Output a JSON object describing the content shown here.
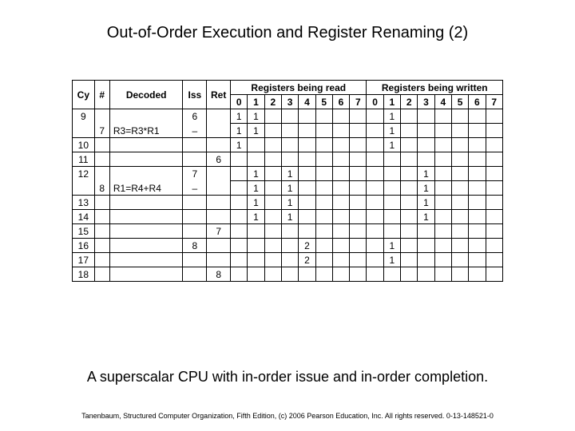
{
  "title": "Out-of-Order Execution and Register Renaming (2)",
  "caption": "A superscalar CPU with in-order issue and in-order completion.",
  "footer": "Tanenbaum, Structured Computer Organization, Fifth Edition, (c) 2006 Pearson Education, Inc. All rights reserved. 0-13-148521-0",
  "table": {
    "group_headers": {
      "read": "Registers being read",
      "write": "Registers being written"
    },
    "col_headers": {
      "cy": "Cy",
      "hash": "#",
      "decoded": "Decoded",
      "iss": "Iss",
      "ret": "Ret"
    },
    "reg_cols": [
      "0",
      "1",
      "2",
      "3",
      "4",
      "5",
      "6",
      "7"
    ],
    "rows": [
      {
        "cy": "9",
        "hash": "",
        "decoded": "",
        "iss": "6",
        "ret": "",
        "r": [
          "1",
          "1",
          "",
          "",
          "",
          "",
          "",
          ""
        ],
        "w": [
          "",
          "1",
          "",
          "",
          "",
          "",
          "",
          ""
        ],
        "split": "bottom"
      },
      {
        "cy": "",
        "hash": "7",
        "decoded": "R3=R3*R1",
        "iss": "–",
        "ret": "",
        "r": [
          "1",
          "1",
          "",
          "",
          "",
          "",
          "",
          ""
        ],
        "w": [
          "",
          "1",
          "",
          "",
          "",
          "",
          "",
          ""
        ],
        "split": "top"
      },
      {
        "cy": "10",
        "hash": "",
        "decoded": "",
        "iss": "",
        "ret": "",
        "r": [
          "1",
          "",
          "",
          "",
          "",
          "",
          "",
          ""
        ],
        "w": [
          "",
          "1",
          "",
          "",
          "",
          "",
          "",
          ""
        ]
      },
      {
        "cy": "11",
        "hash": "",
        "decoded": "",
        "iss": "",
        "ret": "6",
        "r": [
          "",
          "",
          "",
          "",
          "",
          "",
          "",
          ""
        ],
        "w": [
          "",
          "",
          "",
          "",
          "",
          "",
          "",
          ""
        ]
      },
      {
        "cy": "12",
        "hash": "",
        "decoded": "",
        "iss": "7",
        "ret": "",
        "r": [
          "",
          "1",
          "",
          "1",
          "",
          "",
          "",
          ""
        ],
        "w": [
          "",
          "",
          "",
          "1",
          "",
          "",
          "",
          ""
        ],
        "split": "bottom"
      },
      {
        "cy": "",
        "hash": "8",
        "decoded": "R1=R4+R4",
        "iss": "–",
        "ret": "",
        "r": [
          "",
          "1",
          "",
          "1",
          "",
          "",
          "",
          ""
        ],
        "w": [
          "",
          "",
          "",
          "1",
          "",
          "",
          "",
          ""
        ],
        "split": "top"
      },
      {
        "cy": "13",
        "hash": "",
        "decoded": "",
        "iss": "",
        "ret": "",
        "r": [
          "",
          "1",
          "",
          "1",
          "",
          "",
          "",
          ""
        ],
        "w": [
          "",
          "",
          "",
          "1",
          "",
          "",
          "",
          ""
        ]
      },
      {
        "cy": "14",
        "hash": "",
        "decoded": "",
        "iss": "",
        "ret": "",
        "r": [
          "",
          "1",
          "",
          "1",
          "",
          "",
          "",
          ""
        ],
        "w": [
          "",
          "",
          "",
          "1",
          "",
          "",
          "",
          ""
        ]
      },
      {
        "cy": "15",
        "hash": "",
        "decoded": "",
        "iss": "",
        "ret": "7",
        "r": [
          "",
          "",
          "",
          "",
          "",
          "",
          "",
          ""
        ],
        "w": [
          "",
          "",
          "",
          "",
          "",
          "",
          "",
          ""
        ]
      },
      {
        "cy": "16",
        "hash": "",
        "decoded": "",
        "iss": "8",
        "ret": "",
        "r": [
          "",
          "",
          "",
          "",
          "2",
          "",
          "",
          ""
        ],
        "w": [
          "",
          "1",
          "",
          "",
          "",
          "",
          "",
          ""
        ]
      },
      {
        "cy": "17",
        "hash": "",
        "decoded": "",
        "iss": "",
        "ret": "",
        "r": [
          "",
          "",
          "",
          "",
          "2",
          "",
          "",
          ""
        ],
        "w": [
          "",
          "1",
          "",
          "",
          "",
          "",
          "",
          ""
        ]
      },
      {
        "cy": "18",
        "hash": "",
        "decoded": "",
        "iss": "",
        "ret": "8",
        "r": [
          "",
          "",
          "",
          "",
          "",
          "",
          "",
          ""
        ],
        "w": [
          "",
          "",
          "",
          "",
          "",
          "",
          "",
          ""
        ]
      }
    ]
  },
  "style": {
    "title_fontsize": 20,
    "caption_fontsize": 18,
    "footer_fontsize": 9,
    "cell_fontsize": 12,
    "border_color": "#000000",
    "background": "#ffffff",
    "text_color": "#000000"
  }
}
